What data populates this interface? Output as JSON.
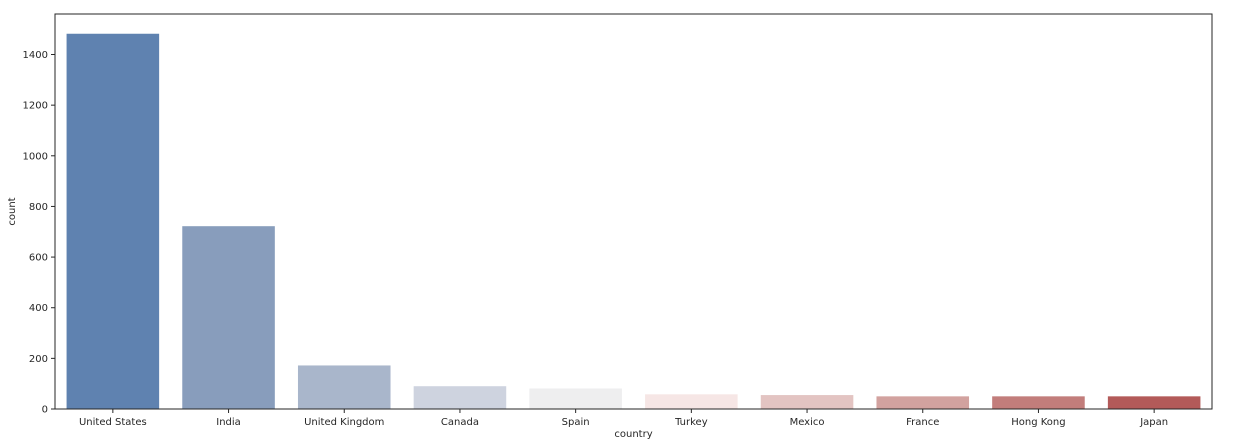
{
  "chart_data": {
    "type": "bar",
    "title": "",
    "xlabel": "country",
    "ylabel": "count",
    "categories": [
      "United States",
      "India",
      "United Kingdom",
      "Canada",
      "Spain",
      "Turkey",
      "Mexico",
      "France",
      "Hong Kong",
      "Japan"
    ],
    "values": [
      1482,
      722,
      172,
      90,
      81,
      58,
      55,
      50,
      50,
      50
    ],
    "ylim": [
      0,
      1560
    ],
    "yticks": [
      0,
      200,
      400,
      600,
      800,
      1000,
      1200,
      1400
    ],
    "ytick_labels": [
      "0",
      "200",
      "400",
      "600",
      "800",
      "1000",
      "1200",
      "1400"
    ],
    "colors": [
      "#5f82b0",
      "#889dbc",
      "#a9b6cb",
      "#ced3df",
      "#eeeeef",
      "#f6e6e5",
      "#e3c4c2",
      "#d2a29f",
      "#c27d7b",
      "#b35a59"
    ],
    "grid": false,
    "legend": "none"
  }
}
